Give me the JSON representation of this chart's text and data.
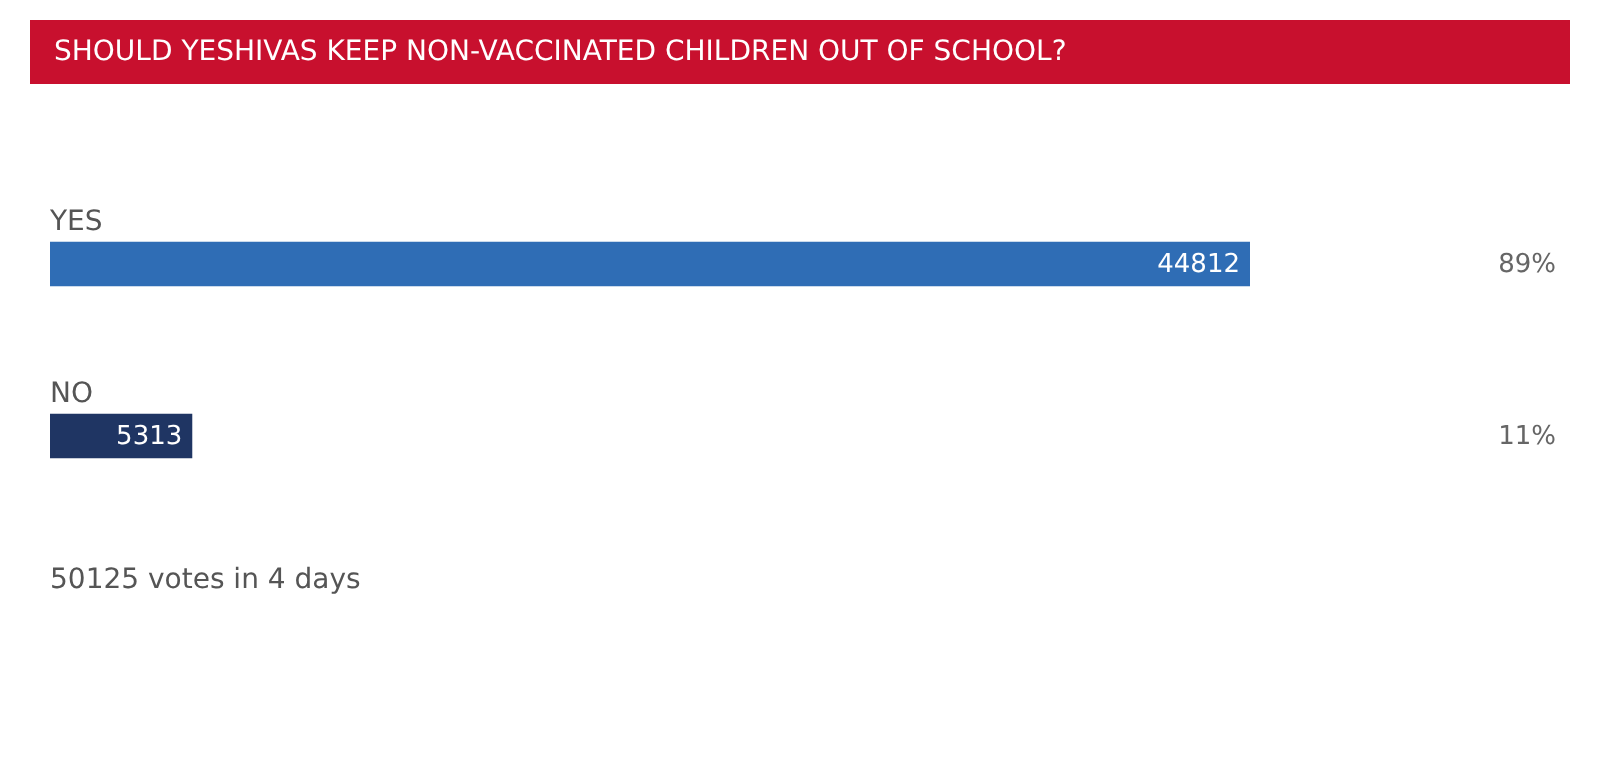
{
  "chart_data": {
    "type": "bar",
    "orientation": "horizontal",
    "title": "SHOULD YESHIVAS KEEP NON-VACCINATED CHILDREN OUT OF SCHOOL?",
    "categories": [
      "YES",
      "NO"
    ],
    "values": [
      44812,
      5313
    ],
    "colors": [
      "#2f6db5",
      "#1f3563"
    ],
    "data_labels": true,
    "annotations": [
      "89%",
      "11%",
      "50125 votes in 4 days"
    ]
  }
}
